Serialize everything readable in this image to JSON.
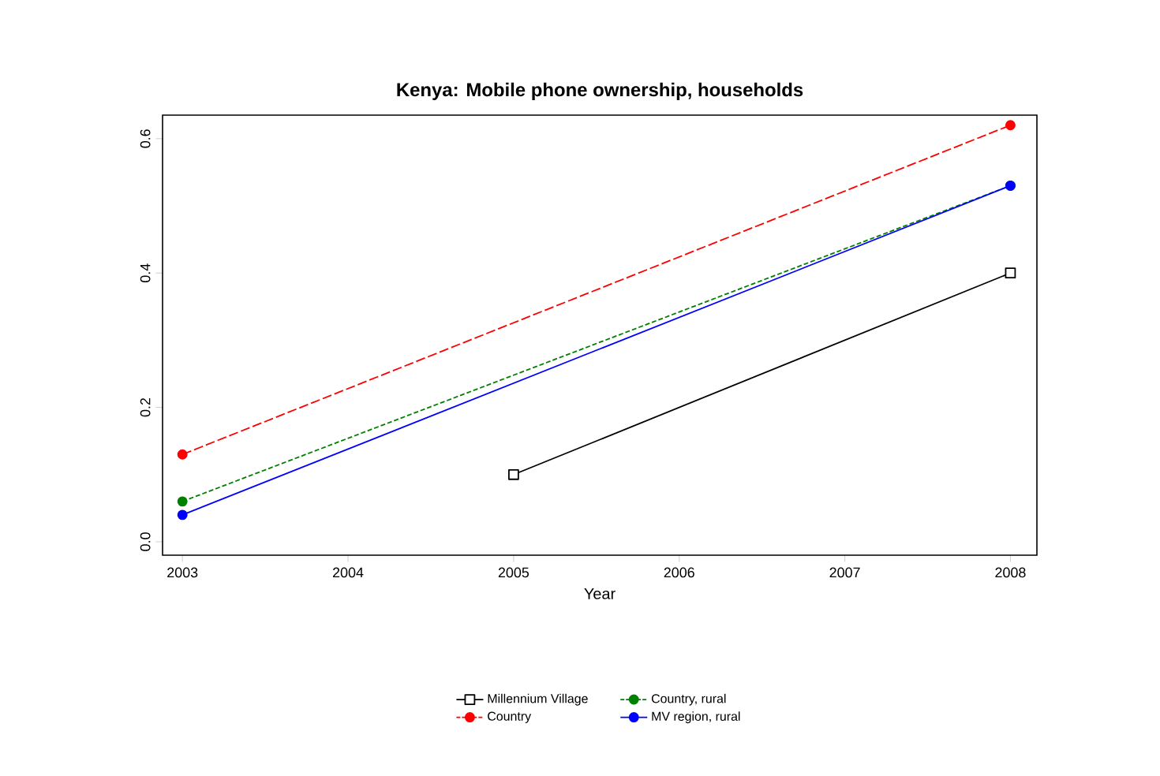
{
  "chart_data": {
    "type": "line",
    "title": "Kenya: Mobile phone ownership, households",
    "xlabel": "Year",
    "series": [
      {
        "name": "Millennium Village",
        "color": "#000000",
        "marker": "square",
        "line_style": "solid",
        "x": [
          2005,
          2008
        ],
        "values": [
          0.1,
          0.4
        ]
      },
      {
        "name": "Country",
        "color": "#ff0000",
        "marker": "circle",
        "line_style": "dashed",
        "x": [
          2003,
          2008
        ],
        "values": [
          0.13,
          0.62
        ]
      },
      {
        "name": "Country, rural",
        "color": "#008000",
        "marker": "circle",
        "line_style": "dotted",
        "x": [
          2003,
          2008
        ],
        "values": [
          0.06,
          0.53
        ]
      },
      {
        "name": "MV region, rural",
        "color": "#0000ff",
        "marker": "circle",
        "line_style": "solid",
        "x": [
          2003,
          2008
        ],
        "values": [
          0.04,
          0.53
        ]
      }
    ],
    "xlim": [
      2002.88,
      2008.16
    ],
    "ylim": [
      -0.02,
      0.635
    ],
    "xticks": [
      2003,
      2004,
      2005,
      2006,
      2007,
      2008
    ],
    "yticks": [
      {
        "value": 0,
        "label": "0.0"
      },
      {
        "value": 0.2,
        "label": "0.2"
      },
      {
        "value": 0.4,
        "label": "0.4"
      },
      {
        "value": 0.6,
        "label": "0.6"
      }
    ],
    "legend": "bottom",
    "grid": false
  }
}
